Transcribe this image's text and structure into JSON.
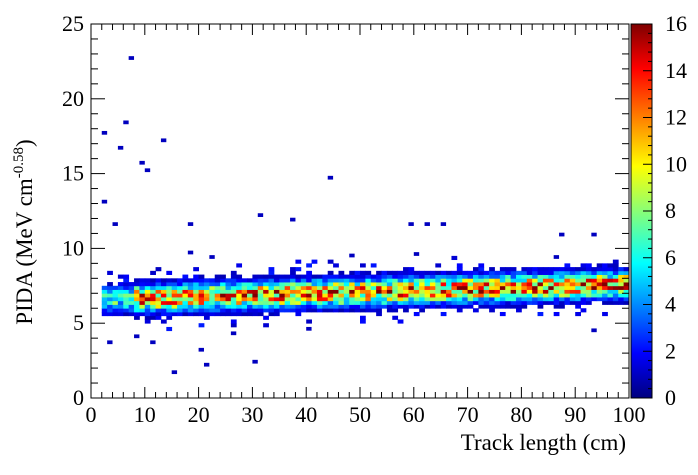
{
  "chart_data": {
    "type": "heatmap",
    "title": "",
    "xlabel": "Track length (cm)",
    "ylabel_main": "PIDA (MeV cm",
    "ylabel_sup": "-0.58",
    "ylabel_close": ")",
    "xlim": [
      0,
      100
    ],
    "ylim": [
      0,
      25
    ],
    "zlim": [
      0,
      16
    ],
    "x_ticks": [
      0,
      10,
      20,
      30,
      40,
      50,
      60,
      70,
      80,
      90,
      100
    ],
    "y_ticks": [
      0,
      5,
      10,
      15,
      20,
      25
    ],
    "z_ticks": [
      0,
      2,
      4,
      6,
      8,
      10,
      12,
      14,
      16
    ],
    "bin_width_x": 1,
    "bin_width_y": 0.25,
    "colormap": "jet",
    "outliers": [
      [
        2,
        17.6
      ],
      [
        5,
        16.6
      ],
      [
        6,
        18.3
      ],
      [
        7,
        22.6
      ],
      [
        9,
        15.6
      ],
      [
        10,
        15.1
      ],
      [
        13,
        17.1
      ],
      [
        2,
        13.0
      ],
      [
        4,
        11.5
      ],
      [
        18,
        11.5
      ],
      [
        31,
        12.1
      ],
      [
        37,
        11.8
      ],
      [
        44,
        14.6
      ],
      [
        59,
        11.5
      ],
      [
        62,
        11.5
      ],
      [
        65,
        11.5
      ],
      [
        87,
        10.8
      ],
      [
        93,
        10.8
      ],
      [
        15,
        1.6
      ],
      [
        21,
        2.1
      ],
      [
        30,
        2.3
      ],
      [
        20,
        3.1
      ],
      [
        3,
        3.6
      ],
      [
        8,
        4.0
      ],
      [
        11,
        3.6
      ],
      [
        26,
        4.2
      ],
      [
        40,
        4.5
      ],
      [
        93,
        4.4
      ],
      [
        18,
        9.6
      ],
      [
        22,
        9.3
      ],
      [
        48,
        9.4
      ],
      [
        60,
        9.5
      ],
      [
        86,
        9.3
      ]
    ],
    "band": {
      "x_start": 2,
      "x_end": 99,
      "center_start": 6.6,
      "center_end": 7.6,
      "sigma": 0.55,
      "peak_counts": 15
    }
  }
}
